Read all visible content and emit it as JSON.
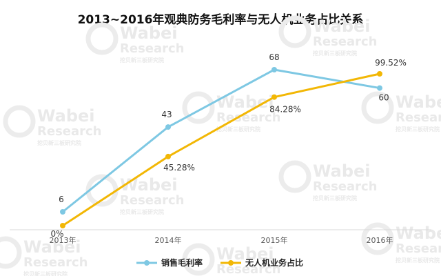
{
  "chart_data": {
    "type": "line",
    "title": "2013~2016年观典防务毛利率与无人机业务占比关系",
    "categories": [
      "2013年",
      "2014年",
      "2015年",
      "2016年"
    ],
    "series": [
      {
        "name": "销售毛利率",
        "color": "#7ec8e3",
        "values": [
          6,
          43,
          68,
          60
        ],
        "labels": [
          "6",
          "43",
          "68",
          "60"
        ]
      },
      {
        "name": "无人机业务占比",
        "color": "#f2b705",
        "values": [
          0,
          45.28,
          84.28,
          99.52
        ],
        "labels": [
          "0%",
          "45.28%",
          "84.28%",
          "99.52%"
        ]
      }
    ],
    "grid": false,
    "legend": "bottom-center"
  },
  "watermark": {
    "brand": "Wabei",
    "sub": "Research",
    "cn": "挖贝新三板研究院"
  }
}
